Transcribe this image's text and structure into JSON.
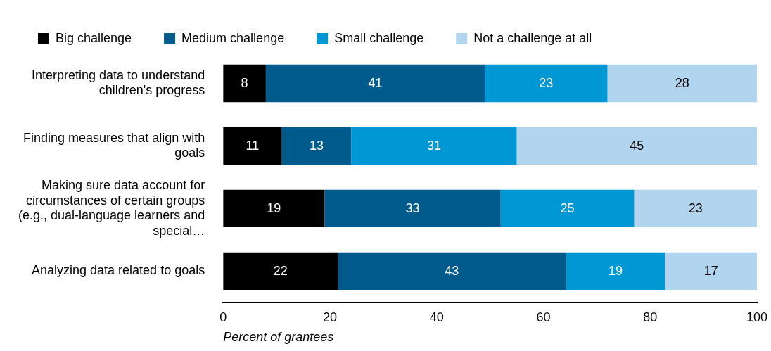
{
  "chart_data": {
    "type": "bar",
    "orientation": "horizontal",
    "stacked": true,
    "categories": [
      "Interpreting data to understand children's progress",
      "Finding measures that align with goals",
      "Making sure data account for circumstances of certain groups (e.g., dual-language learners and special…",
      "Analyzing data related to goals"
    ],
    "series": [
      {
        "name": "Big challenge",
        "color": "#000000",
        "values": [
          8,
          11,
          19,
          21.5
        ],
        "value_labels": [
          "8",
          "11",
          "19",
          "22"
        ]
      },
      {
        "name": "Medium challenge",
        "color": "#005a8c",
        "values": [
          41,
          13,
          33,
          42.7
        ],
        "value_labels": [
          "41",
          "13",
          "33",
          "43"
        ]
      },
      {
        "name": "Small challenge",
        "color": "#0098d4",
        "values": [
          23,
          31,
          25,
          18.6
        ],
        "value_labels": [
          "23",
          "31",
          "25",
          "19"
        ]
      },
      {
        "name": "Not a challenge at all",
        "color": "#b1d5ef",
        "values": [
          28,
          45,
          23,
          17.2
        ],
        "value_labels": [
          "28",
          "45",
          "23",
          "17"
        ]
      }
    ],
    "xlim": [
      0,
      100
    ],
    "xticks": [
      0,
      20,
      40,
      60,
      80,
      100
    ],
    "xlabel": "Percent of grantees",
    "grid": false,
    "legend": "top"
  }
}
